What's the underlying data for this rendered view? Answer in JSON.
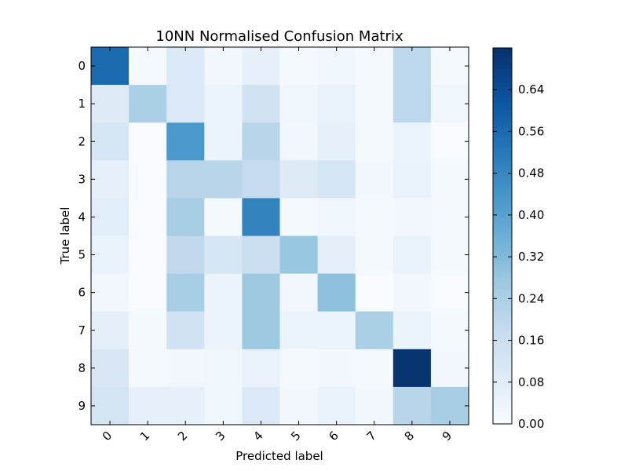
{
  "chart_data": {
    "type": "heatmap",
    "title": "10NN Normalised Confusion Matrix",
    "xlabel": "Predicted label",
    "ylabel": "True label",
    "x_categories": [
      "0",
      "1",
      "2",
      "3",
      "4",
      "5",
      "6",
      "7",
      "8",
      "9"
    ],
    "y_categories": [
      "0",
      "1",
      "2",
      "3",
      "4",
      "5",
      "6",
      "7",
      "8",
      "9"
    ],
    "matrix": [
      [
        0.56,
        0.01,
        0.1,
        0.02,
        0.06,
        0.01,
        0.03,
        0.01,
        0.2,
        0.01
      ],
      [
        0.09,
        0.24,
        0.1,
        0.04,
        0.14,
        0.03,
        0.05,
        0.01,
        0.2,
        0.03
      ],
      [
        0.12,
        0.0,
        0.43,
        0.04,
        0.21,
        0.02,
        0.06,
        0.01,
        0.04,
        0.0
      ],
      [
        0.06,
        0.0,
        0.21,
        0.21,
        0.18,
        0.09,
        0.12,
        0.02,
        0.05,
        0.01
      ],
      [
        0.08,
        0.0,
        0.25,
        0.01,
        0.49,
        0.01,
        0.03,
        0.01,
        0.02,
        0.01
      ],
      [
        0.05,
        0.0,
        0.19,
        0.12,
        0.16,
        0.28,
        0.07,
        0.01,
        0.05,
        0.01
      ],
      [
        0.02,
        0.0,
        0.25,
        0.04,
        0.27,
        0.02,
        0.3,
        0.0,
        0.02,
        0.0
      ],
      [
        0.07,
        0.01,
        0.14,
        0.04,
        0.27,
        0.04,
        0.04,
        0.24,
        0.04,
        0.01
      ],
      [
        0.11,
        0.01,
        0.02,
        0.03,
        0.05,
        0.01,
        0.02,
        0.01,
        0.71,
        0.02
      ],
      [
        0.13,
        0.06,
        0.06,
        0.03,
        0.1,
        0.02,
        0.05,
        0.02,
        0.21,
        0.25
      ]
    ],
    "colorbar": {
      "min": 0.0,
      "max": 0.72,
      "ticks": [
        "0.00",
        "0.08",
        "0.16",
        "0.24",
        "0.32",
        "0.40",
        "0.48",
        "0.56",
        "0.64"
      ],
      "colormap": "Blues",
      "low_color": "#f7fbff",
      "high_color": "#08306b"
    },
    "grid": false,
    "legend": "colorbar-right"
  }
}
